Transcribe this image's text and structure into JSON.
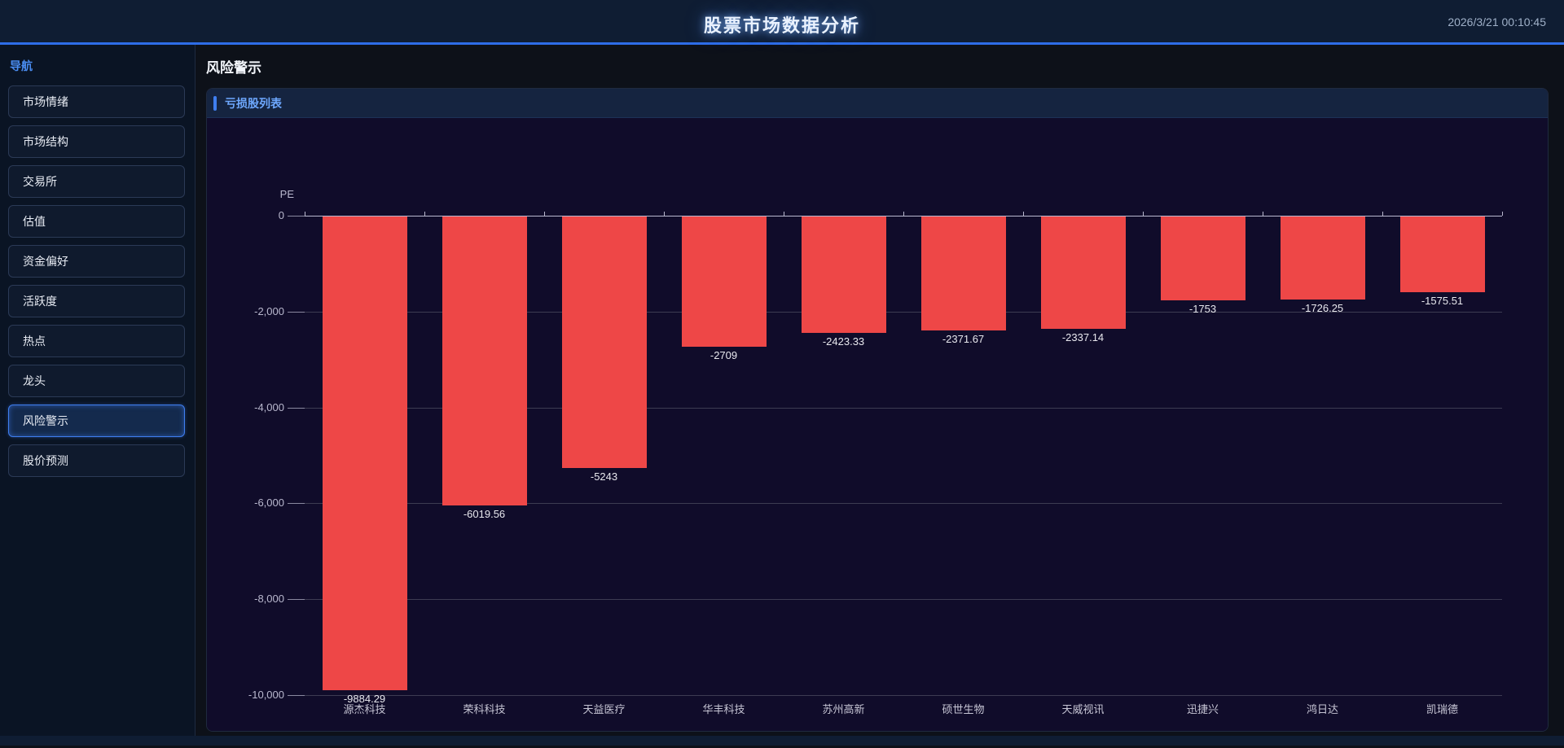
{
  "header": {
    "title": "股票市场数据分析",
    "timestamp": "2026/3/21 00:10:45"
  },
  "sidebar": {
    "title": "导航",
    "items": [
      {
        "label": "市场情绪",
        "active": false
      },
      {
        "label": "市场结构",
        "active": false
      },
      {
        "label": "交易所",
        "active": false
      },
      {
        "label": "估值",
        "active": false
      },
      {
        "label": "资金偏好",
        "active": false
      },
      {
        "label": "活跃度",
        "active": false
      },
      {
        "label": "热点",
        "active": false
      },
      {
        "label": "龙头",
        "active": false
      },
      {
        "label": "风险警示",
        "active": true
      },
      {
        "label": "股价预测",
        "active": false
      }
    ]
  },
  "main": {
    "page_title": "风险警示",
    "panel_title": "亏损股列表"
  },
  "chart_data": {
    "type": "bar",
    "title": "亏损股列表",
    "ylabel": "PE",
    "xlabel": "",
    "categories": [
      "源杰科技",
      "荣科科技",
      "天益医疗",
      "华丰科技",
      "苏州高新",
      "硕世生物",
      "天威视讯",
      "迅捷兴",
      "鸿日达",
      "凯瑞德"
    ],
    "values": [
      -9884.29,
      -6019.56,
      -5243,
      -2709,
      -2423.33,
      -2371.67,
      -2337.14,
      -1753,
      -1726.25,
      -1575.51
    ],
    "value_labels": [
      "-9884.29",
      "-6019.56",
      "-5243",
      "-2709",
      "-2423.33",
      "-2371.67",
      "-2337.14",
      "-1753",
      "-1726.25",
      "-1575.51"
    ],
    "ylim": [
      -10000,
      0
    ],
    "ytick_values": [
      0,
      -2000,
      -4000,
      -6000,
      -8000,
      -10000
    ],
    "ytick_labels": [
      "0",
      "-2,000",
      "-4,000",
      "-6,000",
      "-8,000",
      "-10,000"
    ],
    "grid": true,
    "legend": false,
    "bar_color": "#ee4747"
  },
  "colors": {
    "accent_blue": "#2e6de8",
    "active_item_border": "#3f7ef0",
    "panel_title_blue": "#6ea8fe",
    "bar_red": "#ee4747",
    "chart_background": "#100c2a"
  }
}
